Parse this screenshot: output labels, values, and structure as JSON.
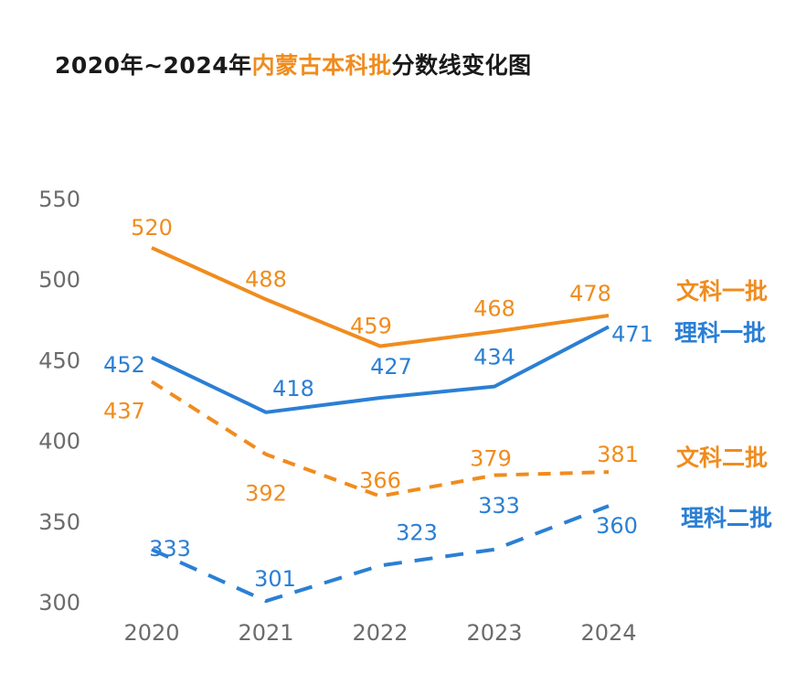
{
  "title": {
    "prefix": "2020年~2024年",
    "highlight": "内蒙古本科批",
    "suffix": "分数线变化图"
  },
  "colors": {
    "orange": "#f08c1e",
    "blue": "#2b7fd4",
    "highlight": "#f08c1e"
  },
  "chart_data": {
    "type": "line",
    "title": "2020年~2024年内蒙古本科批分数线变化图",
    "xlabel": "",
    "ylabel": "",
    "categories": [
      "2020",
      "2021",
      "2022",
      "2023",
      "2024"
    ],
    "yticks": [
      300,
      350,
      400,
      450,
      500,
      550
    ],
    "ylim": [
      300,
      550
    ],
    "grid": false,
    "legend": "inline-right",
    "series": [
      {
        "name": "文科一批",
        "values": [
          520,
          488,
          459,
          468,
          478
        ],
        "color": "#f08c1e",
        "style": "solid"
      },
      {
        "name": "理科一批",
        "values": [
          452,
          418,
          427,
          434,
          471
        ],
        "color": "#2b7fd4",
        "style": "solid"
      },
      {
        "name": "文科二批",
        "values": [
          437,
          392,
          366,
          379,
          381
        ],
        "color": "#f08c1e",
        "style": "dashed"
      },
      {
        "name": "理科二批",
        "values": [
          333,
          301,
          323,
          333,
          360
        ],
        "color": "#2b7fd4",
        "style": "dashed"
      }
    ]
  }
}
